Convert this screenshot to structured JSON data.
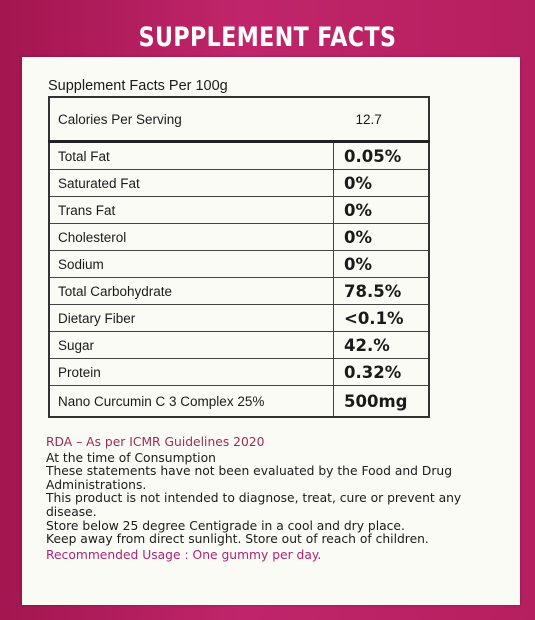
{
  "title": "SUPPLEMENT FACTS",
  "facts_heading": "Supplement Facts Per 100g",
  "calories": {
    "label": "Calories Per Serving",
    "value": "12.7"
  },
  "rows": [
    {
      "label": "Total Fat",
      "value": "0.05%"
    },
    {
      "label": "Saturated Fat",
      "value": "0%"
    },
    {
      "label": "Trans Fat",
      "value": "0%"
    },
    {
      "label": "Cholesterol",
      "value": "0%"
    },
    {
      "label": "Sodium",
      "value": "0%"
    },
    {
      "label": "Total Carbohydrate",
      "value": "78.5%"
    },
    {
      "label": "Dietary Fiber",
      "value": "<0.1%"
    },
    {
      "label": "Sugar",
      "value": "42.%"
    },
    {
      "label": "Protein",
      "value": "0.32%"
    },
    {
      "label": "Nano Curcumin C 3 Complex 25%",
      "value": "500mg"
    }
  ],
  "notes": {
    "rda": "RDA – As per ICMR Guidelines 2020",
    "lines": [
      "At the time of Consumption",
      "These statements have not been evaluated by the Food and Drug",
      "Administrations.",
      "This product is not intended to diagnose, treat, cure or prevent any",
      "disease.",
      "Store below 25 degree Centigrade in a cool and dry place.",
      "Keep away from direct sunlight. Store out of reach of children."
    ],
    "usage": "Recommended Usage : One gummy per day."
  },
  "colors": {
    "background": "#b81d62",
    "panel": "#fbfbf6",
    "rda_text": "#9b2c55",
    "usage_text": "#b12373"
  }
}
